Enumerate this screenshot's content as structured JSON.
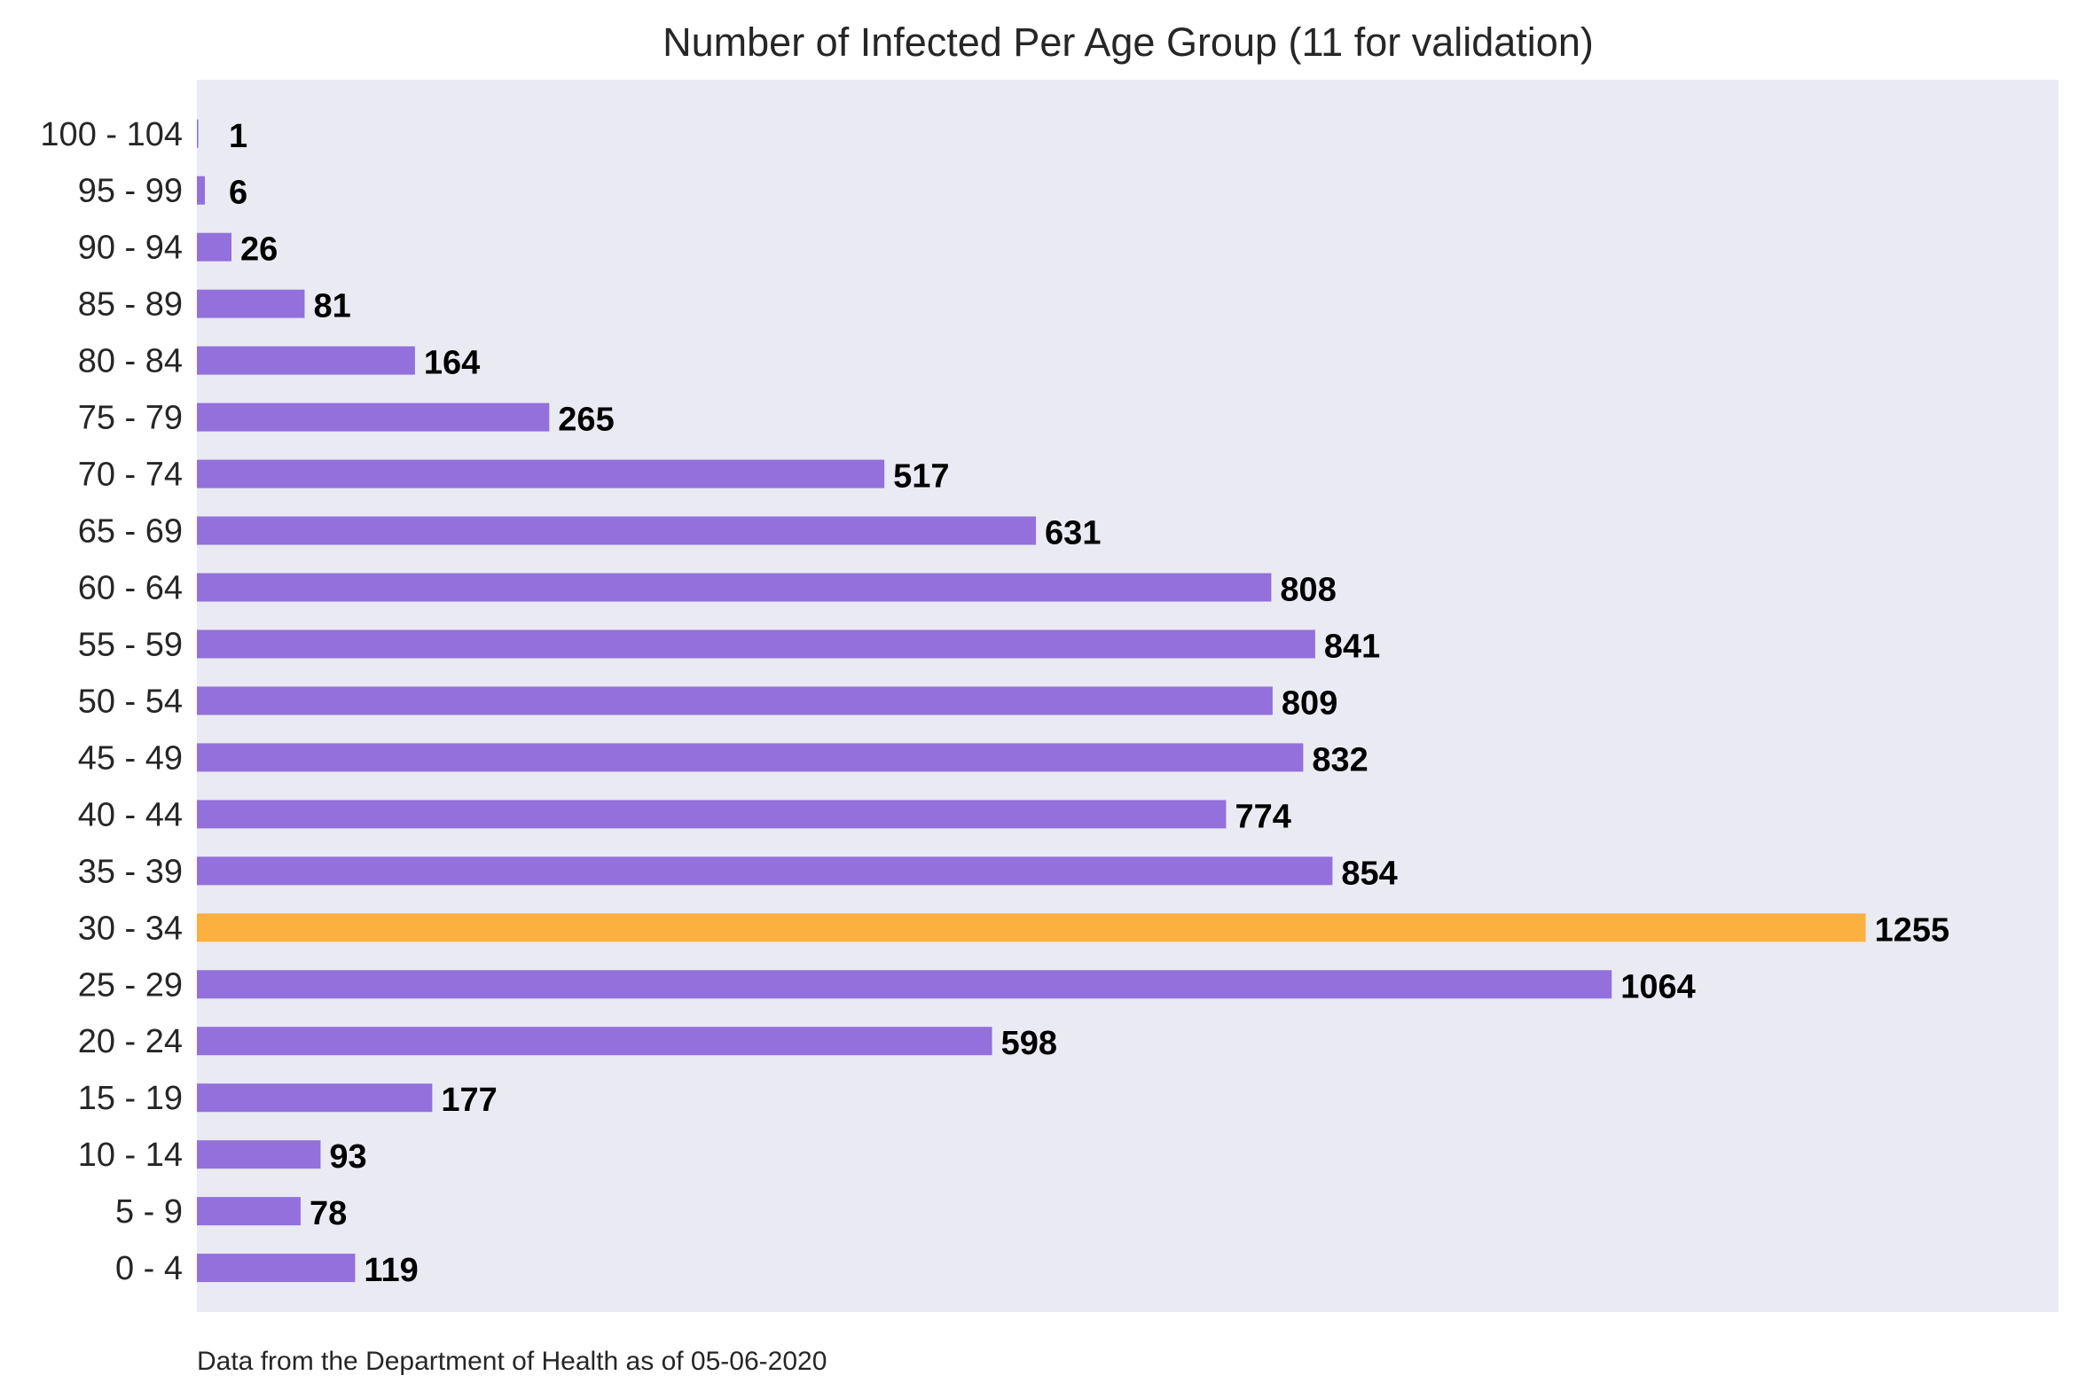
{
  "colors": {
    "plot_background": "#eaeaf2",
    "bar_default": "#9370db",
    "bar_highlight": "#fbb040"
  },
  "chart_data": {
    "type": "bar",
    "orientation": "horizontal",
    "title": "Number of Infected Per Age Group (11 for validation)",
    "footnote": "Data from the Department of Health as of 05-06-2020",
    "xlabel": "",
    "ylabel": "",
    "xlim": [
      0,
      1400
    ],
    "grid": false,
    "categories": [
      "0 - 4",
      "5 - 9",
      "10 - 14",
      "15 - 19",
      "20 - 24",
      "25 - 29",
      "30 - 34",
      "35 - 39",
      "40 - 44",
      "45 - 49",
      "50 - 54",
      "55 - 59",
      "60 - 64",
      "65 - 69",
      "70 - 74",
      "75 - 79",
      "80 - 84",
      "85 - 89",
      "90 - 94",
      "95 - 99",
      "100 - 104"
    ],
    "values": [
      119,
      78,
      93,
      177,
      598,
      1064,
      1255,
      854,
      774,
      832,
      809,
      841,
      808,
      631,
      517,
      265,
      164,
      81,
      26,
      6,
      1
    ],
    "value_labels": [
      "119",
      "78",
      "93",
      "177",
      "598",
      "1064",
      "1255",
      "854",
      "774",
      "832",
      "809",
      "841",
      "808",
      "631",
      "517",
      "265",
      "164",
      "81",
      "26",
      "6",
      "1"
    ],
    "highlight_category": "30 - 34"
  }
}
